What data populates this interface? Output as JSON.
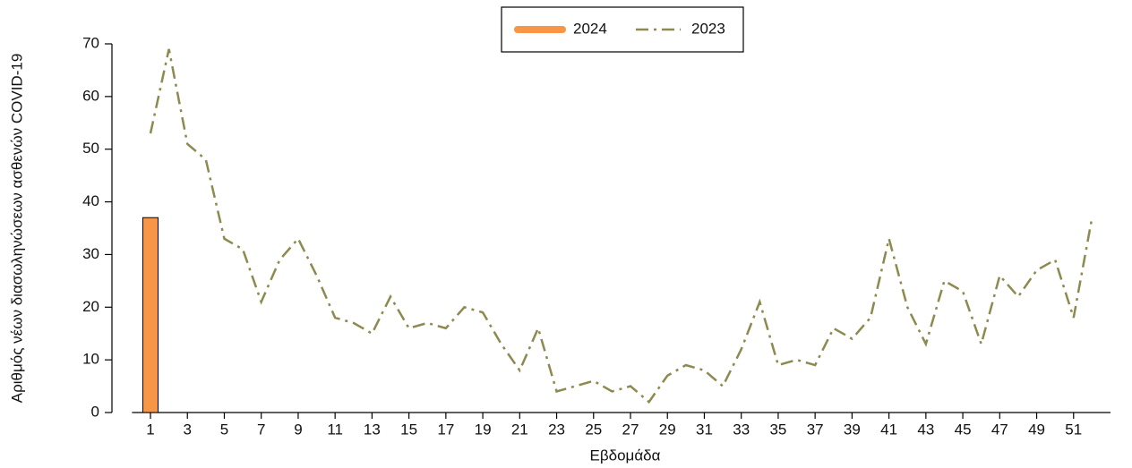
{
  "chart_data": {
    "type": "bar",
    "x_label": "Εβδομάδα",
    "y_label": "Αριθμός νέων διασωληνώσεων ασθενών COVID-19",
    "x": [
      1,
      2,
      3,
      4,
      5,
      6,
      7,
      8,
      9,
      10,
      11,
      12,
      13,
      14,
      15,
      16,
      17,
      18,
      19,
      20,
      21,
      22,
      23,
      24,
      25,
      26,
      27,
      28,
      29,
      30,
      31,
      32,
      33,
      34,
      35,
      36,
      37,
      38,
      39,
      40,
      41,
      42,
      43,
      44,
      45,
      46,
      47,
      48,
      49,
      50,
      51,
      52
    ],
    "xlim": [
      0,
      53
    ],
    "xticks": [
      1,
      3,
      5,
      7,
      9,
      11,
      13,
      15,
      17,
      19,
      21,
      23,
      25,
      27,
      29,
      31,
      33,
      35,
      37,
      39,
      41,
      43,
      45,
      47,
      49,
      51
    ],
    "ylim": [
      0,
      70
    ],
    "yticks": [
      0,
      10,
      20,
      30,
      40,
      50,
      60,
      70
    ],
    "legend_position": "top",
    "series": [
      {
        "name": "2024",
        "type": "bar",
        "color": "#f79646",
        "values": [
          37,
          null,
          null,
          null,
          null,
          null,
          null,
          null,
          null,
          null,
          null,
          null,
          null,
          null,
          null,
          null,
          null,
          null,
          null,
          null,
          null,
          null,
          null,
          null,
          null,
          null,
          null,
          null,
          null,
          null,
          null,
          null,
          null,
          null,
          null,
          null,
          null,
          null,
          null,
          null,
          null,
          null,
          null,
          null,
          null,
          null,
          null,
          null,
          null,
          null,
          null,
          null
        ]
      },
      {
        "name": "2023",
        "type": "line",
        "dash": "dashdot",
        "color": "#8c8a4e",
        "values": [
          53,
          69,
          51,
          48,
          33,
          31,
          21,
          29,
          33,
          26,
          18,
          17,
          15,
          22,
          16,
          17,
          16,
          20,
          19,
          13,
          8,
          16,
          4,
          5,
          6,
          4,
          5,
          2,
          7,
          9,
          8,
          5,
          12,
          21,
          9,
          10,
          9,
          16,
          14,
          18,
          33,
          20,
          13,
          25,
          23,
          13,
          26,
          22,
          27,
          29,
          18,
          37
        ]
      }
    ]
  }
}
